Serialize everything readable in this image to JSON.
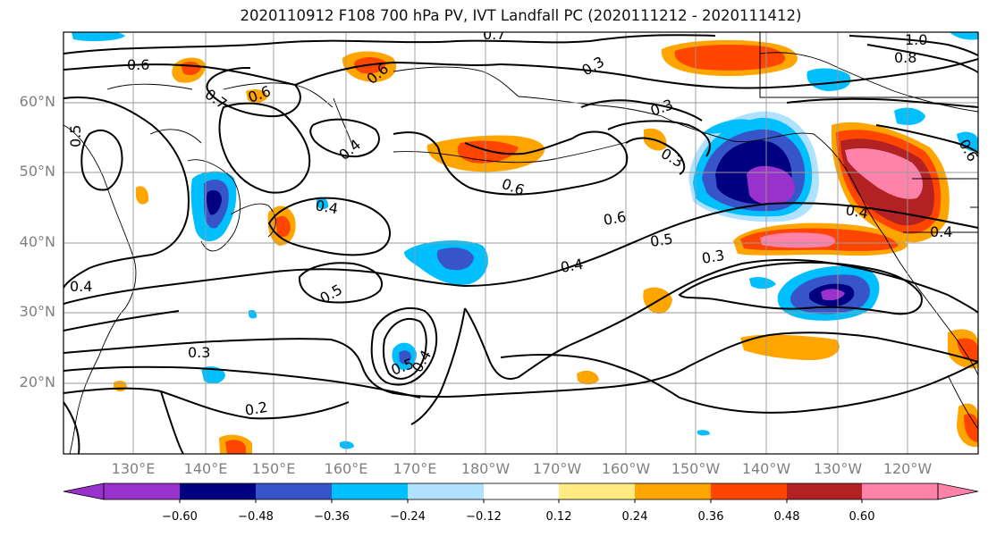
{
  "title": "2020110912 F108 700 hPa PV, IVT Landfall PC (2020111212 - 2020111412)",
  "lat_labels": [
    "60°N",
    "50°N",
    "40°N",
    "30°N",
    "20°N"
  ],
  "lon_labels": [
    "130°E",
    "140°E",
    "150°E",
    "160°E",
    "170°E",
    "180°W",
    "170°W",
    "160°W",
    "150°W",
    "140°W",
    "130°W",
    "120°W"
  ],
  "contour_labels": [
    "0.6",
    "0.7",
    "0.6",
    "0.6",
    "0.5",
    "0.4",
    "0.3",
    "0.4",
    "0.5",
    "0.3",
    "0.4",
    "0.6",
    "0.5",
    "0.4",
    "0.3",
    "0.6",
    "0.4",
    "0.5",
    "0.3",
    "0.2",
    "0.3",
    "0.4",
    "1.0",
    "0.8",
    "0.4",
    "0.7",
    "0.6"
  ],
  "colorbar": {
    "ticks": [
      "−0.60",
      "−0.48",
      "−0.36",
      "−0.24",
      "−0.12",
      "0.12",
      "0.24",
      "0.36",
      "0.48",
      "0.60"
    ],
    "colors": [
      "#9932cc",
      "#000080",
      "#3755c8",
      "#00bfff",
      "#b0e2ff",
      "#ffffff",
      "#ffeb82",
      "#ffa500",
      "#ff4500",
      "#b22222",
      "#ff82ab",
      "#ffffff"
    ]
  },
  "shading_colors": {
    "neg_strong": "#9932cc",
    "neg_4": "#000080",
    "neg_3": "#3755c8",
    "neg_2": "#00bfff",
    "neg_1": "#b0e2ff",
    "pos_1": "#ffeb82",
    "pos_2": "#ffa500",
    "pos_3": "#ff4500",
    "pos_4": "#b22222",
    "pos_strong": "#ff82ab"
  }
}
